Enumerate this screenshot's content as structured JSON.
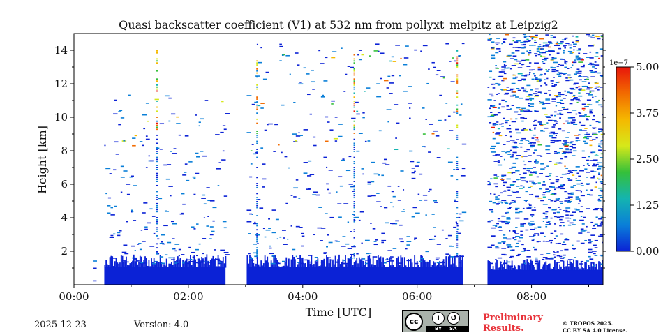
{
  "chart_data": {
    "type": "heatmap",
    "title": "Quasi backscatter coefficient (V1) at 532 nm from pollyxt_melpitz at Leipzig2",
    "xlabel": "Time [UTC]",
    "ylabel": "Height [km]",
    "x_unit": "hours UTC",
    "xlim": [
      0.0,
      9.25
    ],
    "ylim": [
      0.0,
      15.0
    ],
    "x_ticks": [
      0,
      2,
      4,
      6,
      8
    ],
    "x_tick_labels": [
      "00:00",
      "02:00",
      "04:00",
      "06:00",
      "08:00"
    ],
    "y_ticks": [
      2,
      4,
      6,
      8,
      10,
      12,
      14
    ],
    "y_tick_labels": [
      "2",
      "4",
      "6",
      "8",
      "10",
      "12",
      "14"
    ],
    "colorbar": {
      "min": 0.0,
      "max": 5.0,
      "scale_label": "1e−7",
      "ticks": [
        0.0,
        1.25,
        2.5,
        3.75,
        5.0
      ],
      "tick_labels": [
        "0.00",
        "1.25",
        "2.50",
        "3.75",
        "5.00"
      ],
      "colors": [
        "#0b22d6",
        "#0a7fd8",
        "#14b4b0",
        "#35c03a",
        "#d6e81a",
        "#f5b800",
        "#f26b00",
        "#e8150b"
      ]
    },
    "measurement_periods": [
      {
        "start": 0.33,
        "end": 0.34,
        "dense_top_km": 0.0,
        "sparse_top_km": 2.0
      },
      {
        "start": 0.53,
        "end": 2.65,
        "dense_top_km": 1.3,
        "sparse_top_km": 11.5
      },
      {
        "start": 3.02,
        "end": 6.8,
        "dense_top_km": 1.3,
        "sparse_top_km": 14.5
      },
      {
        "start": 7.23,
        "end": 9.25,
        "dense_top_km": 1.1,
        "sparse_top_km": 15.0
      }
    ],
    "profile_streaks": [
      1.45,
      3.2,
      4.9,
      6.7
    ],
    "boundary_layer_value": 0.3
  },
  "footer": {
    "date": "2025-12-23",
    "version": "Version: 4.0",
    "preliminary_line1": "Preliminary",
    "preliminary_line2": "Results.",
    "copyright_line1": "© TROPOS 2025.",
    "copyright_line2": "CC BY SA 4.0 License.",
    "license_badge": {
      "cc": "cc",
      "by": "BY",
      "sa": "SA"
    }
  }
}
